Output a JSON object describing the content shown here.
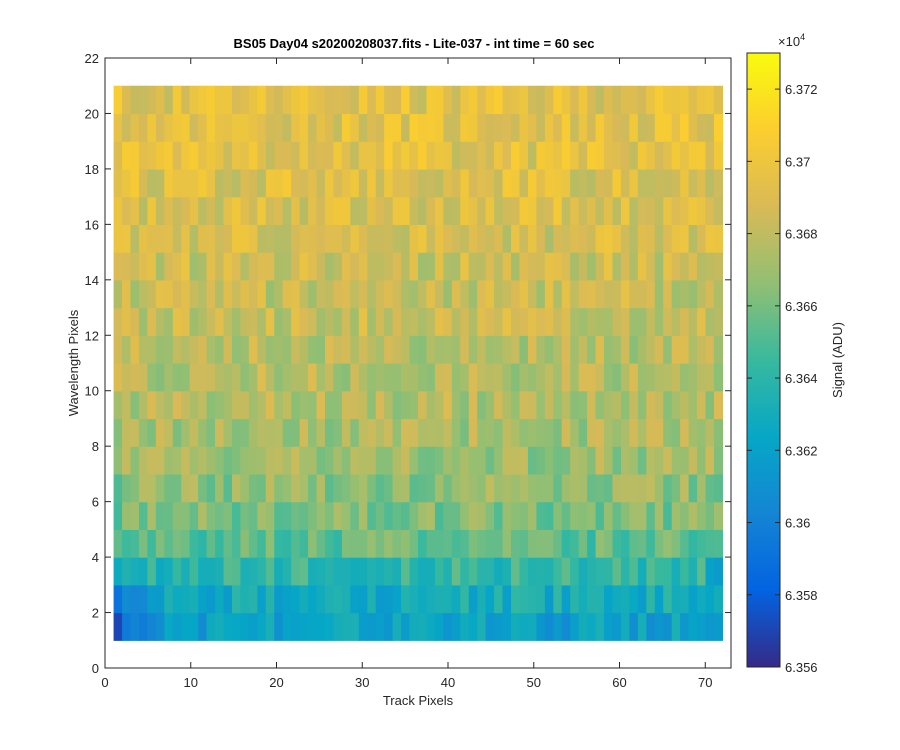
{
  "chart_data": {
    "type": "heatmap",
    "title": "BS05 Day04  s20200208037.fits - Lite-037 - int time = 60 sec",
    "xlabel": "Track Pixels",
    "ylabel": "Wavelength Pixels",
    "xlim": [
      0,
      73
    ],
    "ylim": [
      0,
      22
    ],
    "x_ticks": [
      0,
      10,
      20,
      30,
      40,
      50,
      60,
      70
    ],
    "y_ticks": [
      0,
      2,
      4,
      6,
      8,
      10,
      12,
      14,
      16,
      18,
      20,
      22
    ],
    "x_tick_labels": [
      "0",
      "10",
      "20",
      "30",
      "40",
      "50",
      "60",
      "70"
    ],
    "y_tick_labels": [
      "0",
      "2",
      "4",
      "6",
      "8",
      "10",
      "12",
      "14",
      "16",
      "18",
      "20",
      "22"
    ],
    "grid_columns": 72,
    "grid_rows": 20,
    "cell_x_range": [
      1,
      72
    ],
    "cell_y_range": [
      1,
      21
    ],
    "row_mean_values": [
      63620,
      63629,
      63642,
      63654,
      63662,
      63666,
      63670,
      63673,
      63676,
      63677,
      63678,
      63682,
      63682,
      63684,
      63687,
      63690,
      63691,
      63693,
      63694,
      63693
    ],
    "left_edge_offsets": [
      -45,
      -30,
      -18,
      -10,
      -5,
      -3,
      -2,
      -1,
      0,
      0,
      0,
      0,
      0,
      0,
      0,
      0,
      0,
      0,
      0,
      0
    ],
    "noise_amplitude": 14,
    "colorbar": {
      "label": "Signal (ADU)",
      "exponent_label": "×10",
      "exponent_power": "4",
      "min": 63560,
      "max": 63730,
      "ticks": [
        63560,
        63580,
        63600,
        63620,
        63640,
        63660,
        63680,
        63700,
        63720
      ],
      "tick_labels": [
        "6.356",
        "6.358",
        "6.36",
        "6.362",
        "6.364",
        "6.366",
        "6.368",
        "6.37",
        "6.372"
      ],
      "colormap": "parula"
    }
  }
}
